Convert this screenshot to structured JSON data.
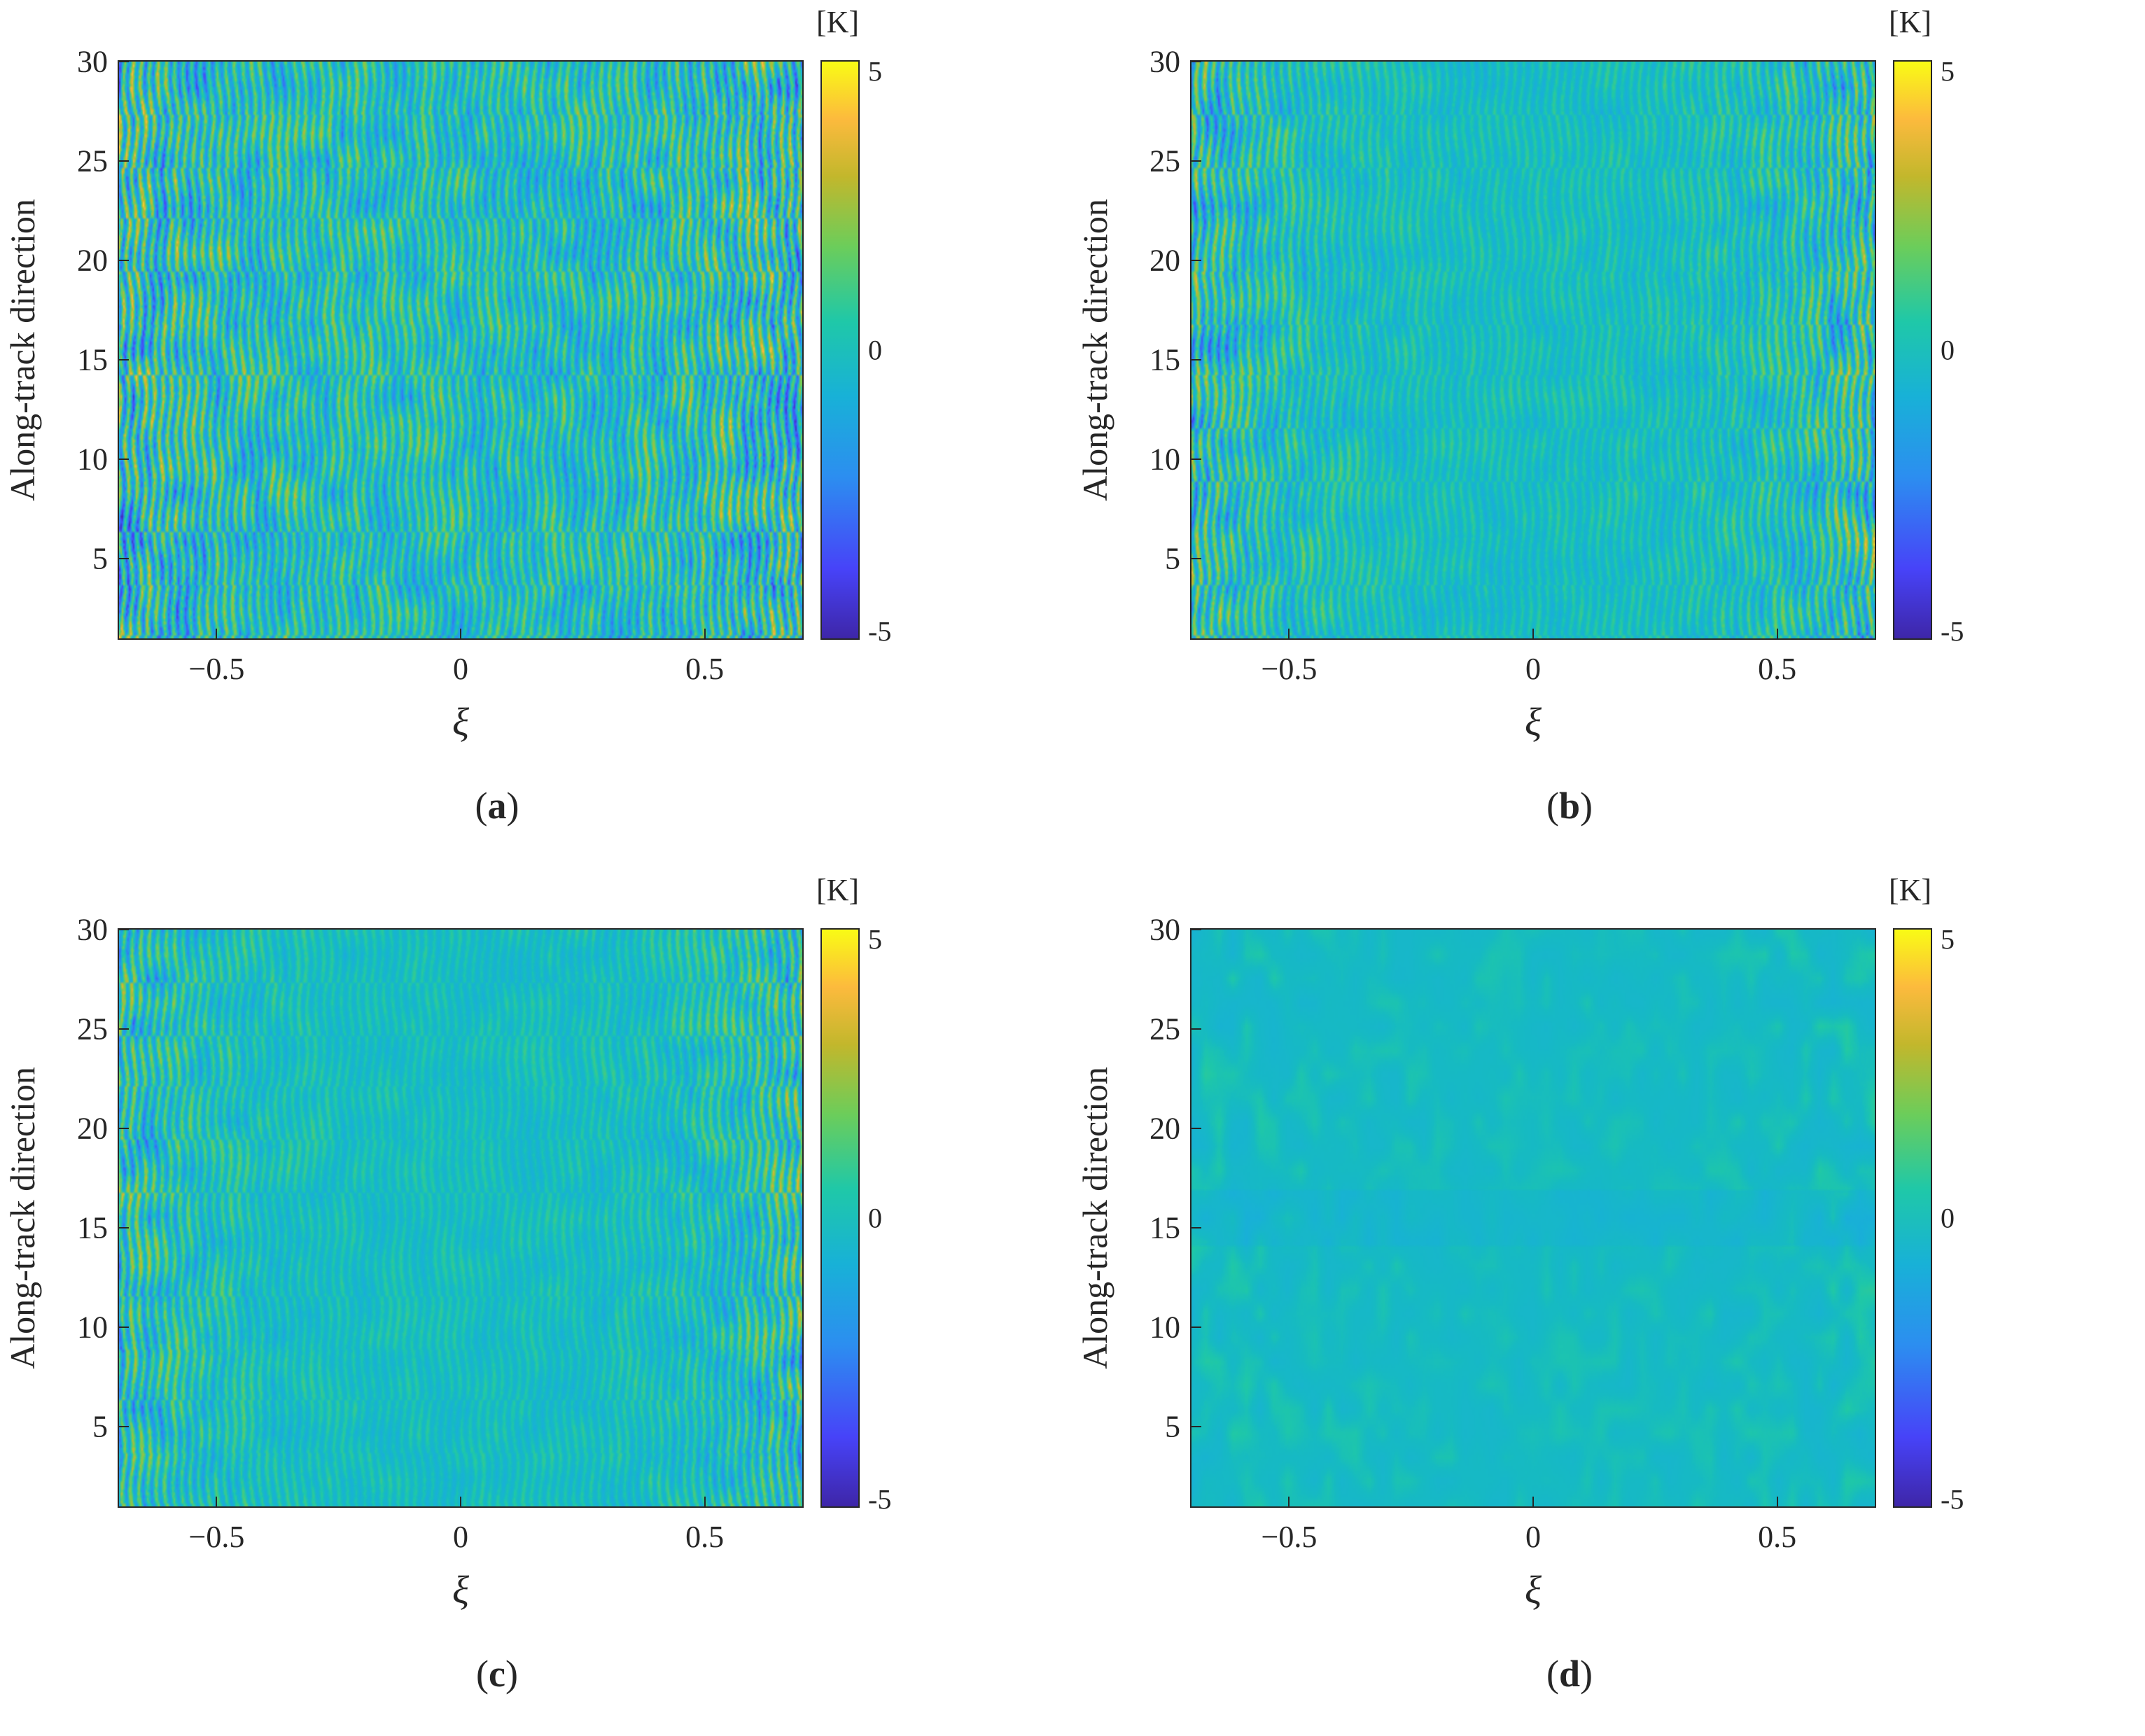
{
  "chart_data": [
    {
      "type": "heatmap",
      "panel": "a",
      "caption_letter": "a",
      "xlabel": "ξ",
      "ylabel": "Along-track direction",
      "xlim": [
        -0.7,
        0.7
      ],
      "ylim": [
        1,
        30
      ],
      "xticks": [
        -0.5,
        0,
        0.5
      ],
      "xtick_labels": [
        "−0.5",
        "0",
        "0.5"
      ],
      "yticks": [
        5,
        10,
        15,
        20,
        25,
        30
      ],
      "ytick_labels": [
        "5",
        "10",
        "15",
        "20",
        "25",
        "30"
      ],
      "colorbar": {
        "unit": "[K]",
        "min": -5,
        "max": 5,
        "ticks": [
          -5,
          0,
          5
        ],
        "tick_labels": [
          "-5",
          "0",
          "5"
        ],
        "colormap": "parula"
      },
      "noise_amplitude_center_K": 2.6,
      "noise_amplitude_edge_K": 4.6
    },
    {
      "type": "heatmap",
      "panel": "b",
      "caption_letter": "b",
      "xlabel": "ξ",
      "ylabel": "Along-track direction",
      "xlim": [
        -0.7,
        0.7
      ],
      "ylim": [
        1,
        30
      ],
      "xticks": [
        -0.5,
        0,
        0.5
      ],
      "xtick_labels": [
        "−0.5",
        "0",
        "0.5"
      ],
      "yticks": [
        5,
        10,
        15,
        20,
        25,
        30
      ],
      "ytick_labels": [
        "5",
        "10",
        "15",
        "20",
        "25",
        "30"
      ],
      "colorbar": {
        "unit": "[K]",
        "min": -5,
        "max": 5,
        "ticks": [
          -5,
          0,
          5
        ],
        "tick_labels": [
          "-5",
          "0",
          "5"
        ],
        "colormap": "parula"
      },
      "noise_amplitude_center_K": 1.1,
      "noise_amplitude_edge_K": 4.0
    },
    {
      "type": "heatmap",
      "panel": "c",
      "caption_letter": "c",
      "xlabel": "ξ",
      "ylabel": "Along-track direction",
      "xlim": [
        -0.7,
        0.7
      ],
      "ylim": [
        1,
        30
      ],
      "xticks": [
        -0.5,
        0,
        0.5
      ],
      "xtick_labels": [
        "−0.5",
        "0",
        "0.5"
      ],
      "yticks": [
        5,
        10,
        15,
        20,
        25,
        30
      ],
      "ytick_labels": [
        "5",
        "10",
        "15",
        "20",
        "25",
        "30"
      ],
      "colorbar": {
        "unit": "[K]",
        "min": -5,
        "max": 5,
        "ticks": [
          -5,
          0,
          5
        ],
        "tick_labels": [
          "-5",
          "0",
          "5"
        ],
        "colormap": "parula"
      },
      "noise_amplitude_center_K": 0.9,
      "noise_amplitude_edge_K": 3.6
    },
    {
      "type": "heatmap",
      "panel": "d",
      "caption_letter": "d",
      "xlabel": "ξ",
      "ylabel": "Along-track direction",
      "xlim": [
        -0.7,
        0.7
      ],
      "ylim": [
        1,
        30
      ],
      "xticks": [
        -0.5,
        0,
        0.5
      ],
      "xtick_labels": [
        "−0.5",
        "0",
        "0.5"
      ],
      "yticks": [
        5,
        10,
        15,
        20,
        25,
        30
      ],
      "ytick_labels": [
        "5",
        "10",
        "15",
        "20",
        "25",
        "30"
      ],
      "colorbar": {
        "unit": "[K]",
        "min": -5,
        "max": 5,
        "ticks": [
          -5,
          0,
          5
        ],
        "tick_labels": [
          "-5",
          "0",
          "5"
        ],
        "colormap": "parula"
      },
      "noise_amplitude_center_K": 0.45,
      "noise_amplitude_edge_K": 0.9
    }
  ]
}
